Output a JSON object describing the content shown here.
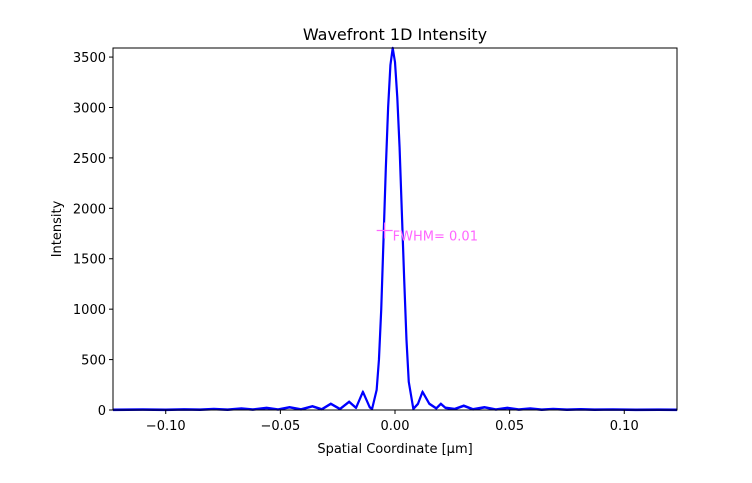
{
  "chart_data": {
    "type": "line",
    "title": "Wavefront 1D Intensity",
    "xlabel": "Spatial Coordinate [μm]",
    "ylabel": "Intensity",
    "xlim": [
      -0.123,
      0.123
    ],
    "ylim": [
      0,
      3590
    ],
    "xticks": [
      -0.1,
      -0.05,
      0.0,
      0.05,
      0.1
    ],
    "xtick_labels": [
      "−0.10",
      "−0.05",
      "0.00",
      "0.05",
      "0.10"
    ],
    "yticks": [
      0,
      500,
      1000,
      1500,
      2000,
      2500,
      3000,
      3500
    ],
    "ytick_labels": [
      "0",
      "500",
      "1000",
      "1500",
      "2000",
      "2500",
      "3000",
      "3500"
    ],
    "grid": false,
    "series": [
      {
        "color": "#0000ff",
        "peak": {
          "x": -0.001,
          "y": 3590
        },
        "x": [
          -0.123,
          -0.11,
          -0.1,
          -0.092,
          -0.085,
          -0.079,
          -0.073,
          -0.067,
          -0.062,
          -0.056,
          -0.051,
          -0.046,
          -0.041,
          -0.036,
          -0.032,
          -0.028,
          -0.024,
          -0.02,
          -0.017,
          -0.014,
          -0.011,
          -0.01,
          -0.008,
          -0.007,
          -0.006,
          -0.005,
          -0.004,
          -0.003,
          -0.002,
          -0.001,
          0.0,
          0.001,
          0.002,
          0.003,
          0.004,
          0.005,
          0.006,
          0.008,
          0.01,
          0.012,
          0.015,
          0.018,
          0.02,
          0.022,
          0.026,
          0.03,
          0.034,
          0.039,
          0.044,
          0.049,
          0.054,
          0.059,
          0.064,
          0.069,
          0.075,
          0.081,
          0.087,
          0.095,
          0.105,
          0.115,
          0.123
        ],
        "y": [
          0,
          2,
          0,
          4,
          1,
          7,
          1,
          12,
          2,
          18,
          3,
          25,
          4,
          35,
          5,
          60,
          8,
          80,
          20,
          180,
          25,
          10,
          200,
          500,
          1000,
          1700,
          2400,
          3000,
          3420,
          3590,
          3450,
          3100,
          2600,
          1950,
          1300,
          700,
          280,
          10,
          60,
          180,
          60,
          15,
          60,
          20,
          8,
          40,
          5,
          25,
          3,
          18,
          2,
          12,
          1,
          8,
          1,
          5,
          1,
          3,
          0,
          1,
          0
        ]
      }
    ],
    "annotations": [
      {
        "text": "FWHM= 0.01",
        "x": -0.0045,
        "y": 1780,
        "marker": "+",
        "color": "#ff66ff"
      }
    ]
  }
}
